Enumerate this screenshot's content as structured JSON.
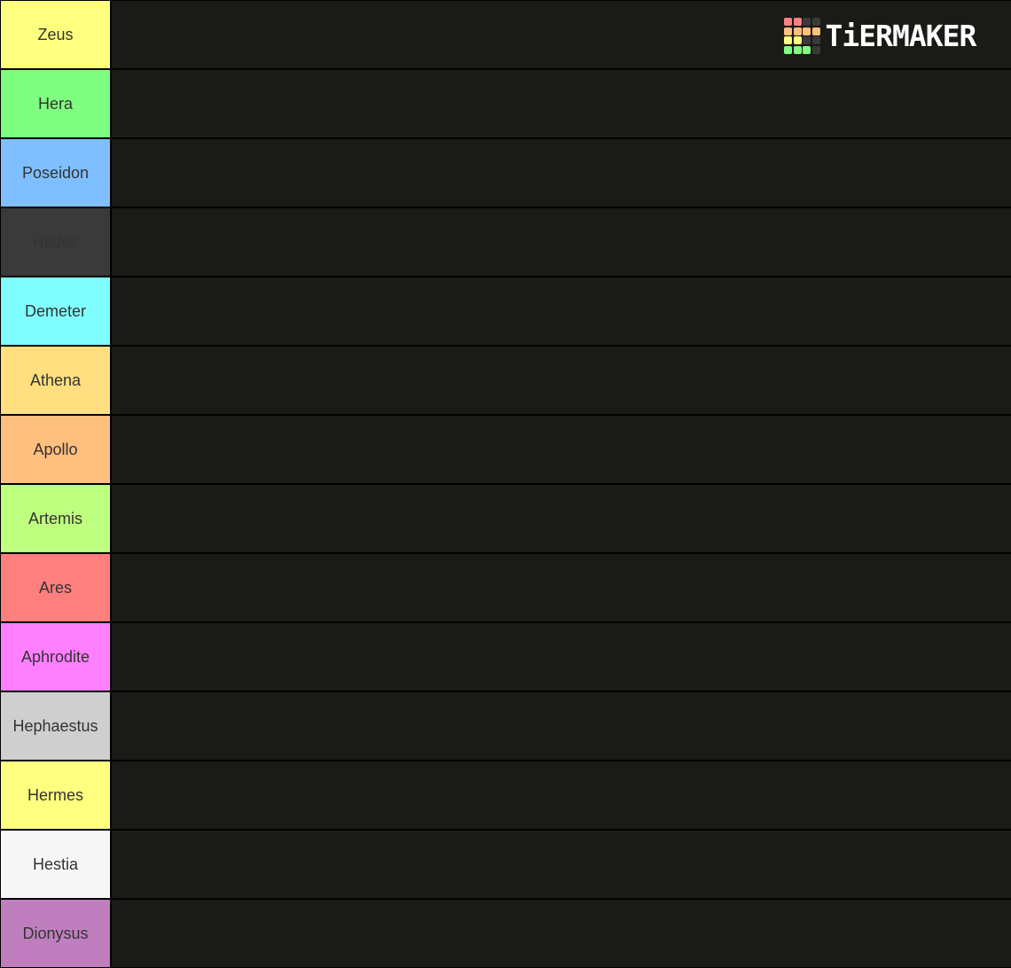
{
  "logo": {
    "text": "TiERMAKER",
    "grid_colors": [
      "#ff7f7f",
      "#ff7f7f",
      "#3a3a3a",
      "#3a3a3a",
      "#ffbf7f",
      "#ffbf7f",
      "#ffbf7f",
      "#ffbf7f",
      "#ffff7f",
      "#ffff7f",
      "#3a3a3a",
      "#3a3a3a",
      "#7fff7f",
      "#7fff7f",
      "#7fff7f",
      "#3a3a3a"
    ]
  },
  "tiers": [
    {
      "label": "Zeus",
      "color": "#ffff7f"
    },
    {
      "label": "Hera",
      "color": "#7fff7f"
    },
    {
      "label": "Poseidon",
      "color": "#7fbfff"
    },
    {
      "label": "Hades",
      "color": "#3a3a3a"
    },
    {
      "label": "Demeter",
      "color": "#7fffff"
    },
    {
      "label": "Athena",
      "color": "#ffdf7f"
    },
    {
      "label": "Apollo",
      "color": "#ffbf7f"
    },
    {
      "label": "Artemis",
      "color": "#bfff7f"
    },
    {
      "label": "Ares",
      "color": "#ff7f7f"
    },
    {
      "label": "Aphrodite",
      "color": "#ff7fff"
    },
    {
      "label": "Hephaestus",
      "color": "#cfcfcf"
    },
    {
      "label": "Hermes",
      "color": "#ffff7f"
    },
    {
      "label": "Hestia",
      "color": "#f7f7f7"
    },
    {
      "label": "Dionysus",
      "color": "#bf7fbf"
    }
  ]
}
